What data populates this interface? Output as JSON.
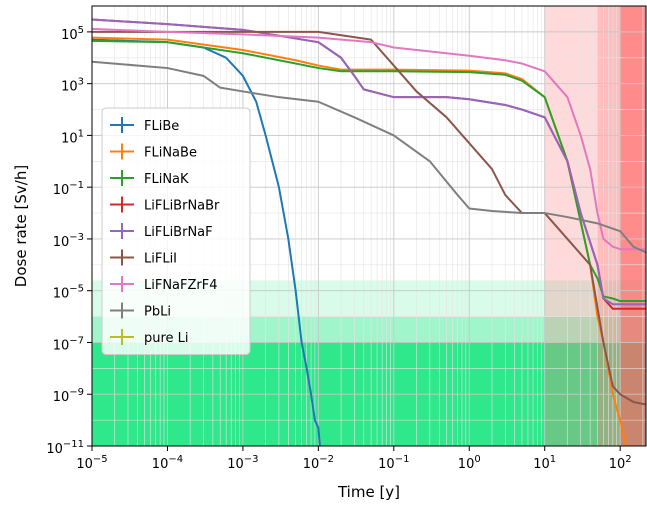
{
  "chart_data": {
    "type": "line",
    "title": "",
    "xlabel": "Time [y]",
    "ylabel": "Dose rate [Sv/h]",
    "xscale": "log",
    "yscale": "log",
    "xlim": [
      1e-05,
      220
    ],
    "ylim": [
      1e-11,
      1000000
    ],
    "grid": true,
    "legend_position": "center-left",
    "x_ticks": [
      {
        "value": 1e-05,
        "base": "10",
        "exp": "−5"
      },
      {
        "value": 0.0001,
        "base": "10",
        "exp": "−4"
      },
      {
        "value": 0.001,
        "base": "10",
        "exp": "−3"
      },
      {
        "value": 0.01,
        "base": "10",
        "exp": "−2"
      },
      {
        "value": 0.1,
        "base": "10",
        "exp": "−1"
      },
      {
        "value": 1,
        "base": "10",
        "exp": "0"
      },
      {
        "value": 10,
        "base": "10",
        "exp": "1"
      },
      {
        "value": 100,
        "base": "10",
        "exp": "2"
      }
    ],
    "y_ticks": [
      {
        "value": 1e-11,
        "base": "10",
        "exp": "−11"
      },
      {
        "value": 1e-09,
        "base": "10",
        "exp": "−9"
      },
      {
        "value": 1e-07,
        "base": "10",
        "exp": "−7"
      },
      {
        "value": 1e-05,
        "base": "10",
        "exp": "−5"
      },
      {
        "value": 0.001,
        "base": "10",
        "exp": "−3"
      },
      {
        "value": 0.1,
        "base": "10",
        "exp": "−1"
      },
      {
        "value": 10,
        "base": "10",
        "exp": "1"
      },
      {
        "value": 1000,
        "base": "10",
        "exp": "3"
      },
      {
        "value": 100000,
        "base": "10",
        "exp": "5"
      }
    ],
    "shaded_regions": [
      {
        "axis": "y",
        "from": 1e-11,
        "to": 1e-07,
        "color": "#2fe88c",
        "opacity": 1.0
      },
      {
        "axis": "y",
        "from": 1e-07,
        "to": 1e-06,
        "color": "#2fe88c",
        "opacity": 0.45
      },
      {
        "axis": "y",
        "from": 1e-06,
        "to": 2.5e-05,
        "color": "#2fe88c",
        "opacity": 0.18
      },
      {
        "axis": "x",
        "from": 10,
        "to": 220,
        "color": "#ff7b7b",
        "opacity": 0.28
      },
      {
        "axis": "x",
        "from": 50,
        "to": 220,
        "color": "#ff7b7b",
        "opacity": 0.3
      },
      {
        "axis": "x",
        "from": 100,
        "to": 220,
        "color": "#ff5a5a",
        "opacity": 0.5
      }
    ],
    "series": [
      {
        "name": "FLiBe",
        "color": "#1f77b4",
        "x": [
          1e-05,
          0.0001,
          0.0003,
          0.0006,
          0.001,
          0.0015,
          0.002,
          0.003,
          0.004,
          0.005,
          0.006,
          0.007,
          0.008,
          0.009,
          0.01,
          0.0105
        ],
        "y": [
          50000,
          40000,
          25000,
          10000,
          2000,
          200,
          10,
          0.1,
          0.001,
          1e-05,
          1e-07,
          1e-08,
          1e-09,
          1e-10,
          5e-11,
          1e-11
        ]
      },
      {
        "name": "FLiNaBe",
        "color": "#ff7f0e",
        "x": [
          1e-05,
          0.0001,
          0.001,
          0.005,
          0.01,
          0.02,
          0.1,
          1,
          3,
          5,
          10,
          20,
          40,
          50,
          60,
          80,
          100,
          120
        ],
        "y": [
          60000,
          50000,
          20000,
          8000,
          5000,
          3500,
          3500,
          3200,
          2500,
          1500,
          300,
          1,
          0.0001,
          1e-06,
          1e-07,
          1e-09,
          1e-10,
          1e-11
        ]
      },
      {
        "name": "FLiNaK",
        "color": "#2ca02c",
        "x": [
          1e-05,
          0.0001,
          0.001,
          0.005,
          0.01,
          0.02,
          0.1,
          1,
          3,
          5,
          10,
          20,
          40,
          50,
          60,
          80,
          100,
          150,
          220
        ],
        "y": [
          45000,
          40000,
          15000,
          6000,
          4000,
          3000,
          3000,
          2800,
          2200,
          1300,
          300,
          1,
          0.0001,
          3e-05,
          6e-06,
          5e-06,
          4e-06,
          4e-06,
          4e-06
        ]
      },
      {
        "name": "LiFLiBrNaBr",
        "color": "#d62728",
        "x": [
          1e-05,
          0.0001,
          0.001,
          0.01,
          0.02,
          0.03,
          0.04,
          0.1,
          0.5,
          1,
          3,
          5,
          10,
          20,
          30,
          50,
          60,
          80,
          100,
          220
        ],
        "y": [
          300000,
          200000,
          120000,
          40000,
          10000,
          2000,
          600,
          300,
          300,
          250,
          150,
          100,
          50,
          1,
          0.01,
          0.0001,
          5e-06,
          2e-06,
          2e-06,
          2e-06
        ]
      },
      {
        "name": "LiFLiBrNaF",
        "color": "#9467bd",
        "x": [
          1e-05,
          0.0001,
          0.001,
          0.01,
          0.02,
          0.03,
          0.04,
          0.1,
          0.5,
          1,
          3,
          5,
          10,
          20,
          30,
          50,
          60,
          80,
          100,
          220
        ],
        "y": [
          300000,
          200000,
          120000,
          40000,
          10000,
          2000,
          600,
          300,
          300,
          250,
          150,
          100,
          50,
          1,
          0.01,
          0.0001,
          5e-06,
          3e-06,
          3e-06,
          3e-06
        ]
      },
      {
        "name": "LiFLiI",
        "color": "#8c564b",
        "x": [
          1e-05,
          0.0001,
          0.001,
          0.01,
          0.05,
          0.1,
          0.2,
          0.5,
          1,
          2,
          3,
          5,
          10,
          20,
          40,
          60,
          80,
          100,
          150,
          220
        ],
        "y": [
          100000,
          100000,
          100000,
          100000,
          50000,
          5000,
          500,
          50,
          5,
          0.5,
          0.05,
          0.01,
          0.01,
          0.001,
          0.0001,
          1e-07,
          2e-09,
          1e-09,
          5e-10,
          4e-10
        ]
      },
      {
        "name": "LiFNaFZrF4",
        "color": "#e377c2",
        "x": [
          1e-05,
          0.0001,
          0.001,
          0.01,
          0.05,
          0.1,
          0.5,
          1,
          3,
          5,
          10,
          20,
          30,
          40,
          50,
          60,
          80,
          100,
          150,
          220
        ],
        "y": [
          130000,
          100000,
          80000,
          60000,
          40000,
          25000,
          15000,
          12000,
          8000,
          6000,
          3000,
          300,
          10,
          0.5,
          0.01,
          0.001,
          0.0005,
          0.0004,
          0.0004,
          0.0004
        ]
      },
      {
        "name": "PbLi",
        "color": "#7f7f7f",
        "x": [
          1e-05,
          0.0001,
          0.0003,
          0.0005,
          0.001,
          0.003,
          0.01,
          0.03,
          0.1,
          0.3,
          0.7,
          1,
          2,
          5,
          10,
          20,
          50,
          100,
          150,
          220
        ],
        "y": [
          7000,
          4000,
          2000,
          700,
          500,
          300,
          200,
          50,
          10,
          1,
          0.05,
          0.015,
          0.012,
          0.01,
          0.01,
          0.007,
          0.004,
          0.002,
          0.0005,
          0.0003
        ]
      },
      {
        "name": "pure Li",
        "color": "#bcbd22",
        "x": [],
        "y": []
      }
    ]
  }
}
